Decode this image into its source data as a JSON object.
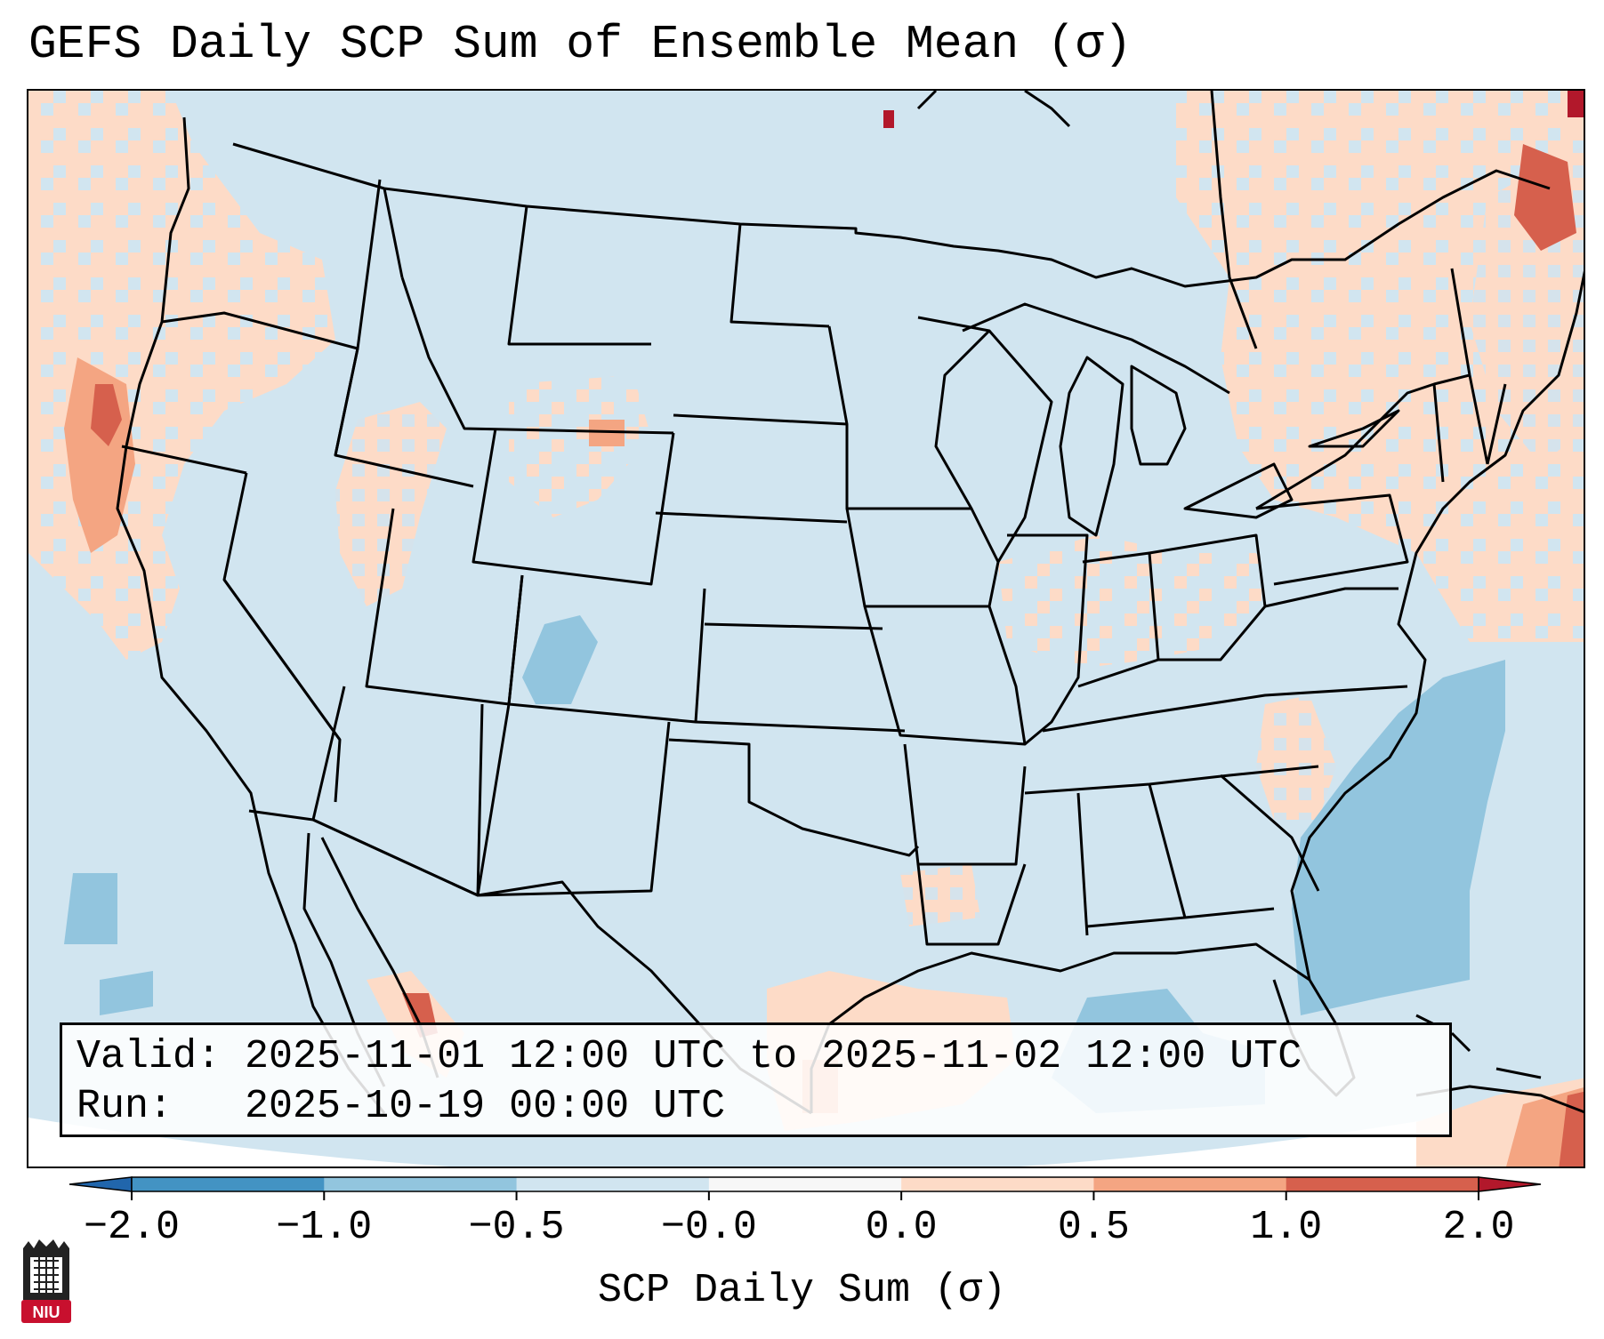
{
  "title": "GEFS Daily SCP Sum of Ensemble Mean (σ)",
  "info": {
    "valid_label": "Valid:",
    "valid_value": "2025-11-01 12:00 UTC to 2025-11-02 12:00 UTC",
    "run_label": "Run:",
    "run_value": "2025-10-19 00:00 UTC"
  },
  "colorbar": {
    "label": "SCP Daily Sum (σ)",
    "ticks": [
      "−2.0",
      "−1.0",
      "−0.5",
      "−0.0",
      "0.0",
      "0.5",
      "1.0",
      "2.0"
    ],
    "colors": [
      "#4393c3",
      "#92c5de",
      "#d1e5f0",
      "#f7f7f7",
      "#fddbc7",
      "#f4a582",
      "#d6604d"
    ],
    "under_color": "#2166ac",
    "over_color": "#b2182b"
  },
  "map": {
    "background_color": "#d1e5f0",
    "outside_color": "#ffffff",
    "positive_colors": [
      "#fddbc7",
      "#f4a582",
      "#d6604d",
      "#b2182b"
    ],
    "negative_colors": [
      "#92c5de",
      "#4393c3"
    ]
  },
  "logo": {
    "text": "NIU",
    "color": "#c8102e"
  }
}
